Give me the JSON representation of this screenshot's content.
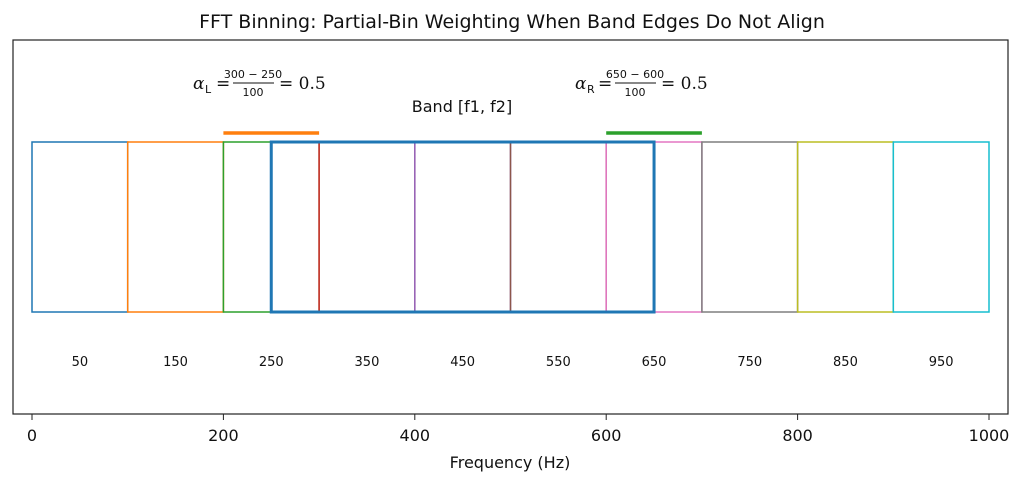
{
  "chart_data": {
    "type": "bar",
    "title": "FFT Binning: Partial-Bin Weighting When Band Edges Do Not Align",
    "xlabel": "Frequency (Hz)",
    "ylabel": "",
    "xlim": [
      0,
      1000
    ],
    "xticks": [
      0,
      200,
      400,
      600,
      800,
      1000
    ],
    "grid": false,
    "bins": [
      {
        "start": 0,
        "end": 100,
        "center_label": "50",
        "color": "#1f77b4"
      },
      {
        "start": 100,
        "end": 200,
        "center_label": "150",
        "color": "#ff7f0e"
      },
      {
        "start": 200,
        "end": 300,
        "center_label": "250",
        "color": "#2ca02c"
      },
      {
        "start": 300,
        "end": 400,
        "center_label": "350",
        "color": "#d62728"
      },
      {
        "start": 400,
        "end": 500,
        "center_label": "450",
        "color": "#9467bd"
      },
      {
        "start": 500,
        "end": 600,
        "center_label": "550",
        "color": "#8c564b"
      },
      {
        "start": 600,
        "end": 700,
        "center_label": "650",
        "color": "#e377c2"
      },
      {
        "start": 700,
        "end": 800,
        "center_label": "750",
        "color": "#7f7f7f"
      },
      {
        "start": 800,
        "end": 900,
        "center_label": "850",
        "color": "#bcbd22"
      },
      {
        "start": 900,
        "end": 1000,
        "center_label": "950",
        "color": "#17becf"
      }
    ],
    "band": {
      "f1": 250,
      "f2": 650,
      "label": "Band [f1, f2]",
      "color": "#1f77b4"
    },
    "edge_markers": [
      {
        "start": 200,
        "end": 300,
        "color": "#ff7f0e"
      },
      {
        "start": 600,
        "end": 700,
        "color": "#2ca02c"
      }
    ],
    "annotations": [
      {
        "symbol": "α",
        "sub": "L",
        "numerator": "300 − 250",
        "denominator": "100",
        "result": "= 0.5"
      },
      {
        "symbol": "α",
        "sub": "R",
        "numerator": "650 − 600",
        "denominator": "100",
        "result": "= 0.5"
      }
    ]
  }
}
